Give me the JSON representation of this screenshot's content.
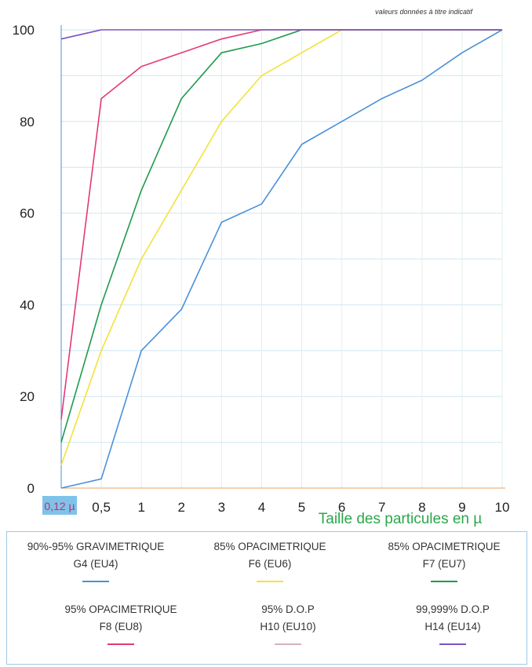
{
  "note": "valeurs données à titre indicatif",
  "chart_data": {
    "type": "line",
    "x": [
      "0,12 µ",
      "0,5",
      "1",
      "2",
      "3",
      "4",
      "5",
      "6",
      "7",
      "8",
      "9",
      "10"
    ],
    "xlabel": "Taille des particules en µ",
    "ylabel": "",
    "ylim": [
      0,
      100
    ],
    "yticks": [
      0,
      20,
      40,
      60,
      80,
      100
    ],
    "series": [
      {
        "name": "90%-95% GRAVIMETRIQUE G4 (EU4)",
        "color": "#4a90d9",
        "values": [
          0,
          2,
          30,
          39,
          58,
          62,
          75,
          80,
          85,
          89,
          95,
          100
        ]
      },
      {
        "name": "85% OPACIMETRIQUE F6 (EU6)",
        "color": "#f2e23a",
        "values": [
          5,
          30,
          50,
          65,
          80,
          90,
          95,
          100,
          100,
          100,
          100,
          100
        ]
      },
      {
        "name": "85% OPACIMETRIQUE F7 (EU7)",
        "color": "#1f9a4e",
        "values": [
          10,
          40,
          65,
          85,
          95,
          97,
          100,
          100,
          100,
          100,
          100,
          100
        ]
      },
      {
        "name": "95% OPACIMETRIQUE F8 (EU8)",
        "color": "#e23a72",
        "values": [
          15,
          85,
          92,
          95,
          98,
          100,
          100,
          100,
          100,
          100,
          100,
          100
        ]
      },
      {
        "name": "95% D.O.P H10 (EU10)",
        "color": "#d8b0c0",
        "values": [
          null,
          null,
          null,
          null,
          null,
          null,
          null,
          null,
          null,
          null,
          null,
          null
        ]
      },
      {
        "name": "99,999% D.O.P H14 (EU14)",
        "color": "#7a55c0",
        "values": [
          98,
          100,
          100,
          100,
          100,
          100,
          100,
          100,
          100,
          100,
          100,
          100
        ]
      }
    ]
  },
  "legend": [
    {
      "line1": "90%-95% GRAVIMETRIQUE",
      "line2": "G4 (EU4)",
      "color": "#4a90d9"
    },
    {
      "line1": "85% OPACIMETRIQUE",
      "line2": "F6 (EU6)",
      "color": "#f2e23a"
    },
    {
      "line1": "85% OPACIMETRIQUE",
      "line2": "F7 (EU7)",
      "color": "#1f9a4e"
    },
    {
      "line1": "95% OPACIMETRIQUE",
      "line2": "F8 (EU8)",
      "color": "#e23a72"
    },
    {
      "line1": "95% D.O.P",
      "line2": "H10 (EU10)",
      "color": "#d8b0c0"
    },
    {
      "line1": "99,999% D.O.P",
      "line2": "H14 (EU14)",
      "color": "#7a55c0"
    }
  ]
}
